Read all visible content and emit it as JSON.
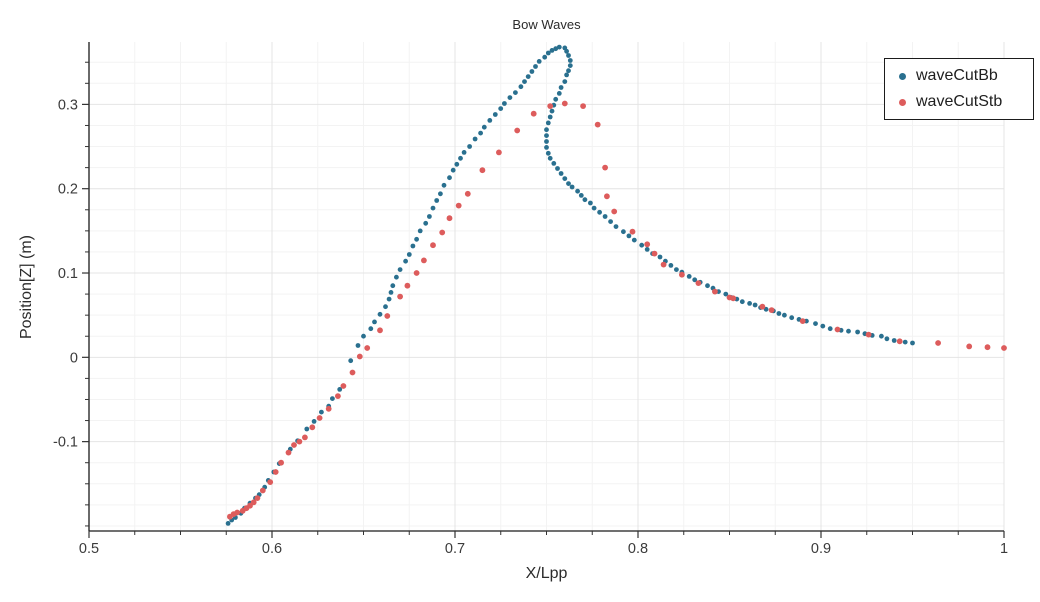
{
  "title": "Bow Waves",
  "x_axis": {
    "label": "X/Lpp",
    "tick_labels": [
      "0.5",
      "0.6",
      "0.7",
      "0.8",
      "0.9",
      "1"
    ],
    "tick_values": [
      0.5,
      0.6,
      0.7,
      0.8,
      0.9,
      1.0
    ]
  },
  "y_axis": {
    "label": "Position[Z] (m)",
    "tick_labels": [
      "-0.1",
      "0",
      "0.1",
      "0.2",
      "0.3"
    ],
    "tick_values": [
      -0.1,
      0,
      0.1,
      0.2,
      0.3
    ]
  },
  "legend": {
    "items": [
      {
        "label": "waveCutBb",
        "color": "#2a708f"
      },
      {
        "label": "waveCutStb",
        "color": "#dd5c5c"
      }
    ]
  },
  "colors": {
    "grid_major": "#e4e4e4",
    "grid_minor": "#f3f3f3",
    "axis_line": "#1a1a1a",
    "tick": "#333333",
    "tick_label": "#3b3b3b"
  },
  "chart_data": {
    "type": "scatter",
    "title": "Bow Waves",
    "xlabel": "X/Lpp",
    "ylabel": "Position[Z] (m)",
    "xlim": [
      0.5,
      1.0
    ],
    "ylim": [
      -0.206,
      0.374
    ],
    "x_major_ticks": [
      0.5,
      0.6,
      0.7,
      0.8,
      0.9,
      1.0
    ],
    "y_major_ticks": [
      -0.1,
      0,
      0.1,
      0.2,
      0.3
    ],
    "minor_tick_step": 0.025,
    "grid": true,
    "legend_position": "top-right",
    "series": [
      {
        "name": "waveCutBb",
        "color": "#2a708f",
        "marker_radius": 2.4,
        "points": [
          [
            0.576,
            -0.197
          ],
          [
            0.578,
            -0.193
          ],
          [
            0.58,
            -0.19
          ],
          [
            0.583,
            -0.185
          ],
          [
            0.585,
            -0.179
          ],
          [
            0.588,
            -0.173
          ],
          [
            0.591,
            -0.167
          ],
          [
            0.593,
            -0.163
          ],
          [
            0.596,
            -0.154
          ],
          [
            0.598,
            -0.146
          ],
          [
            0.601,
            -0.136
          ],
          [
            0.604,
            -0.126
          ],
          [
            0.61,
            -0.109
          ],
          [
            0.614,
            -0.099
          ],
          [
            0.619,
            -0.085
          ],
          [
            0.623,
            -0.076
          ],
          [
            0.627,
            -0.065
          ],
          [
            0.631,
            -0.058
          ],
          [
            0.633,
            -0.049
          ],
          [
            0.637,
            -0.038
          ],
          [
            0.643,
            -0.004
          ],
          [
            0.647,
            0.014
          ],
          [
            0.65,
            0.025
          ],
          [
            0.654,
            0.034
          ],
          [
            0.656,
            0.042
          ],
          [
            0.659,
            0.051
          ],
          [
            0.662,
            0.06
          ],
          [
            0.664,
            0.069
          ],
          [
            0.665,
            0.077
          ],
          [
            0.666,
            0.085
          ],
          [
            0.668,
            0.095
          ],
          [
            0.67,
            0.104
          ],
          [
            0.673,
            0.114
          ],
          [
            0.675,
            0.122
          ],
          [
            0.677,
            0.132
          ],
          [
            0.679,
            0.14
          ],
          [
            0.681,
            0.15
          ],
          [
            0.684,
            0.159
          ],
          [
            0.686,
            0.167
          ],
          [
            0.688,
            0.177
          ],
          [
            0.69,
            0.186
          ],
          [
            0.692,
            0.194
          ],
          [
            0.694,
            0.204
          ],
          [
            0.697,
            0.213
          ],
          [
            0.699,
            0.222
          ],
          [
            0.701,
            0.229
          ],
          [
            0.703,
            0.236
          ],
          [
            0.705,
            0.243
          ],
          [
            0.708,
            0.25
          ],
          [
            0.711,
            0.259
          ],
          [
            0.714,
            0.266
          ],
          [
            0.716,
            0.273
          ],
          [
            0.719,
            0.281
          ],
          [
            0.722,
            0.288
          ],
          [
            0.725,
            0.295
          ],
          [
            0.727,
            0.301
          ],
          [
            0.73,
            0.308
          ],
          [
            0.733,
            0.314
          ],
          [
            0.736,
            0.321
          ],
          [
            0.738,
            0.327
          ],
          [
            0.74,
            0.333
          ],
          [
            0.742,
            0.339
          ],
          [
            0.744,
            0.345
          ],
          [
            0.746,
            0.351
          ],
          [
            0.749,
            0.356
          ],
          [
            0.751,
            0.361
          ],
          [
            0.753,
            0.364
          ],
          [
            0.755,
            0.366
          ],
          [
            0.757,
            0.368
          ],
          [
            0.76,
            0.367
          ],
          [
            0.761,
            0.363
          ],
          [
            0.762,
            0.358
          ],
          [
            0.763,
            0.352
          ],
          [
            0.763,
            0.346
          ],
          [
            0.762,
            0.34
          ],
          [
            0.761,
            0.335
          ],
          [
            0.76,
            0.327
          ],
          [
            0.758,
            0.32
          ],
          [
            0.757,
            0.313
          ],
          [
            0.755,
            0.306
          ],
          [
            0.754,
            0.299
          ],
          [
            0.753,
            0.292
          ],
          [
            0.752,
            0.285
          ],
          [
            0.751,
            0.278
          ],
          [
            0.75,
            0.27
          ],
          [
            0.75,
            0.263
          ],
          [
            0.75,
            0.256
          ],
          [
            0.75,
            0.249
          ],
          [
            0.751,
            0.242
          ],
          [
            0.752,
            0.236
          ],
          [
            0.754,
            0.23
          ],
          [
            0.756,
            0.224
          ],
          [
            0.758,
            0.218
          ],
          [
            0.76,
            0.212
          ],
          [
            0.762,
            0.206
          ],
          [
            0.764,
            0.202
          ],
          [
            0.767,
            0.197
          ],
          [
            0.769,
            0.192
          ],
          [
            0.771,
            0.187
          ],
          [
            0.774,
            0.183
          ],
          [
            0.776,
            0.177
          ],
          [
            0.779,
            0.172
          ],
          [
            0.782,
            0.167
          ],
          [
            0.785,
            0.161
          ],
          [
            0.788,
            0.155
          ],
          [
            0.792,
            0.149
          ],
          [
            0.795,
            0.144
          ],
          [
            0.798,
            0.139
          ],
          [
            0.802,
            0.133
          ],
          [
            0.805,
            0.128
          ],
          [
            0.808,
            0.123
          ],
          [
            0.812,
            0.119
          ],
          [
            0.815,
            0.114
          ],
          [
            0.818,
            0.109
          ],
          [
            0.821,
            0.104
          ],
          [
            0.824,
            0.101
          ],
          [
            0.828,
            0.096
          ],
          [
            0.831,
            0.092
          ],
          [
            0.834,
            0.089
          ],
          [
            0.838,
            0.085
          ],
          [
            0.841,
            0.082
          ],
          [
            0.844,
            0.078
          ],
          [
            0.848,
            0.075
          ],
          [
            0.851,
            0.071
          ],
          [
            0.854,
            0.069
          ],
          [
            0.857,
            0.066
          ],
          [
            0.861,
            0.064
          ],
          [
            0.864,
            0.062
          ],
          [
            0.867,
            0.059
          ],
          [
            0.87,
            0.057
          ],
          [
            0.874,
            0.055
          ],
          [
            0.877,
            0.052
          ],
          [
            0.88,
            0.05
          ],
          [
            0.884,
            0.047
          ],
          [
            0.888,
            0.045
          ],
          [
            0.892,
            0.043
          ],
          [
            0.897,
            0.04
          ],
          [
            0.901,
            0.037
          ],
          [
            0.905,
            0.034
          ],
          [
            0.911,
            0.032
          ],
          [
            0.915,
            0.031
          ],
          [
            0.92,
            0.03
          ],
          [
            0.924,
            0.028
          ],
          [
            0.928,
            0.026
          ],
          [
            0.933,
            0.025
          ],
          [
            0.936,
            0.022
          ],
          [
            0.94,
            0.02
          ],
          [
            0.946,
            0.018
          ],
          [
            0.95,
            0.017
          ]
        ]
      },
      {
        "name": "waveCutStb",
        "color": "#dd5c5c",
        "marker_radius": 2.9,
        "points": [
          [
            0.577,
            -0.189
          ],
          [
            0.579,
            -0.186
          ],
          [
            0.581,
            -0.184
          ],
          [
            0.584,
            -0.182
          ],
          [
            0.586,
            -0.179
          ],
          [
            0.588,
            -0.176
          ],
          [
            0.59,
            -0.172
          ],
          [
            0.592,
            -0.167
          ],
          [
            0.595,
            -0.158
          ],
          [
            0.599,
            -0.148
          ],
          [
            0.602,
            -0.136
          ],
          [
            0.605,
            -0.125
          ],
          [
            0.609,
            -0.113
          ],
          [
            0.612,
            -0.104
          ],
          [
            0.615,
            -0.1
          ],
          [
            0.618,
            -0.095
          ],
          [
            0.622,
            -0.083
          ],
          [
            0.626,
            -0.072
          ],
          [
            0.631,
            -0.061
          ],
          [
            0.636,
            -0.046
          ],
          [
            0.639,
            -0.034
          ],
          [
            0.644,
            -0.018
          ],
          [
            0.648,
            0.001
          ],
          [
            0.652,
            0.011
          ],
          [
            0.659,
            0.032
          ],
          [
            0.663,
            0.049
          ],
          [
            0.67,
            0.072
          ],
          [
            0.674,
            0.085
          ],
          [
            0.679,
            0.1
          ],
          [
            0.683,
            0.115
          ],
          [
            0.688,
            0.133
          ],
          [
            0.693,
            0.148
          ],
          [
            0.697,
            0.165
          ],
          [
            0.702,
            0.18
          ],
          [
            0.707,
            0.194
          ],
          [
            0.715,
            0.222
          ],
          [
            0.724,
            0.243
          ],
          [
            0.734,
            0.269
          ],
          [
            0.743,
            0.289
          ],
          [
            0.752,
            0.298
          ],
          [
            0.76,
            0.301
          ],
          [
            0.77,
            0.298
          ],
          [
            0.778,
            0.276
          ],
          [
            0.782,
            0.225
          ],
          [
            0.783,
            0.191
          ],
          [
            0.787,
            0.173
          ],
          [
            0.797,
            0.149
          ],
          [
            0.805,
            0.134
          ],
          [
            0.809,
            0.123
          ],
          [
            0.814,
            0.11
          ],
          [
            0.824,
            0.098
          ],
          [
            0.833,
            0.088
          ],
          [
            0.842,
            0.078
          ],
          [
            0.85,
            0.071
          ],
          [
            0.852,
            0.07
          ],
          [
            0.868,
            0.06
          ],
          [
            0.873,
            0.056
          ],
          [
            0.89,
            0.043
          ],
          [
            0.909,
            0.033
          ],
          [
            0.926,
            0.027
          ],
          [
            0.943,
            0.019
          ],
          [
            0.964,
            0.017
          ],
          [
            0.981,
            0.013
          ],
          [
            0.991,
            0.012
          ],
          [
            1.0,
            0.011
          ]
        ]
      }
    ]
  }
}
